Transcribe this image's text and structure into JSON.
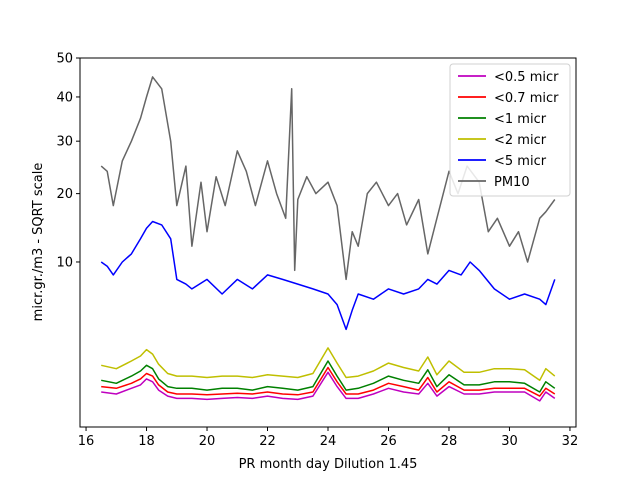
{
  "chart_data": {
    "type": "line",
    "title": "",
    "xlabel": "PR month day  Dilution 1.45",
    "ylabel": "micr.gr./m3 - SQRT scale",
    "y_scale": "sqrt",
    "xlim": [
      15.8,
      32.2
    ],
    "ylim": [
      0,
      50
    ],
    "x_ticks": [
      16,
      18,
      20,
      22,
      24,
      26,
      28,
      30,
      32
    ],
    "y_ticks": [
      10,
      20,
      30,
      40,
      50
    ],
    "grid": false,
    "legend_position": "top-right",
    "series": [
      {
        "name": "<0.5 micr",
        "color": "#bf00bf",
        "x": [
          16.5,
          17,
          17.5,
          17.8,
          18,
          18.2,
          18.4,
          18.7,
          19,
          19.5,
          20,
          20.5,
          21,
          21.5,
          22,
          22.5,
          23,
          23.5,
          24,
          24.3,
          24.6,
          25,
          25.5,
          26,
          26.5,
          27,
          27.3,
          27.6,
          28,
          28.5,
          29,
          29.5,
          30,
          30.5,
          31,
          31.2,
          31.5
        ],
        "y": [
          0.45,
          0.4,
          0.55,
          0.65,
          0.85,
          0.75,
          0.5,
          0.35,
          0.3,
          0.3,
          0.28,
          0.3,
          0.32,
          0.3,
          0.35,
          0.3,
          0.28,
          0.35,
          1.1,
          0.6,
          0.3,
          0.3,
          0.4,
          0.55,
          0.45,
          0.4,
          0.7,
          0.35,
          0.6,
          0.4,
          0.4,
          0.45,
          0.45,
          0.45,
          0.25,
          0.45,
          0.3
        ]
      },
      {
        "name": "<0.7 micr",
        "color": "#ff0000",
        "x": [
          16.5,
          17,
          17.5,
          17.8,
          18,
          18.2,
          18.4,
          18.7,
          19,
          19.5,
          20,
          20.5,
          21,
          21.5,
          22,
          22.5,
          23,
          23.5,
          24,
          24.3,
          24.6,
          25,
          25.5,
          26,
          26.5,
          27,
          27.3,
          27.6,
          28,
          28.5,
          29,
          29.5,
          30,
          30.5,
          31,
          31.2,
          31.5
        ],
        "y": [
          0.6,
          0.55,
          0.7,
          0.85,
          1.05,
          0.95,
          0.65,
          0.45,
          0.4,
          0.4,
          0.38,
          0.4,
          0.42,
          0.4,
          0.45,
          0.4,
          0.38,
          0.45,
          1.3,
          0.75,
          0.4,
          0.4,
          0.5,
          0.7,
          0.6,
          0.5,
          0.9,
          0.45,
          0.75,
          0.5,
          0.5,
          0.55,
          0.55,
          0.55,
          0.35,
          0.55,
          0.4
        ]
      },
      {
        "name": "<1 micr",
        "color": "#008000",
        "x": [
          16.5,
          17,
          17.5,
          17.8,
          18,
          18.2,
          18.4,
          18.7,
          19,
          19.5,
          20,
          20.5,
          21,
          21.5,
          22,
          22.5,
          23,
          23.5,
          24,
          24.3,
          24.6,
          25,
          25.5,
          26,
          26.5,
          27,
          27.3,
          27.6,
          28,
          28.5,
          29,
          29.5,
          30,
          30.5,
          31,
          31.2,
          31.5
        ],
        "y": [
          0.8,
          0.7,
          0.95,
          1.15,
          1.4,
          1.25,
          0.85,
          0.6,
          0.55,
          0.55,
          0.5,
          0.55,
          0.55,
          0.5,
          0.6,
          0.55,
          0.5,
          0.6,
          1.6,
          0.95,
          0.5,
          0.55,
          0.7,
          0.95,
          0.8,
          0.7,
          1.2,
          0.6,
          1.0,
          0.65,
          0.65,
          0.75,
          0.75,
          0.7,
          0.45,
          0.75,
          0.55
        ]
      },
      {
        "name": "<2 micr",
        "color": "#bfbf00",
        "x": [
          16.5,
          17,
          17.5,
          17.8,
          18,
          18.2,
          18.4,
          18.7,
          19,
          19.5,
          20,
          20.5,
          21,
          21.5,
          22,
          22.5,
          23,
          23.5,
          24,
          24.3,
          24.6,
          25,
          25.5,
          26,
          26.5,
          27,
          27.3,
          27.6,
          28,
          28.5,
          29,
          29.5,
          30,
          30.5,
          31,
          31.2,
          31.5
        ],
        "y": [
          1.4,
          1.25,
          1.6,
          1.85,
          2.2,
          1.95,
          1.45,
          1.05,
          0.95,
          0.95,
          0.9,
          0.95,
          0.95,
          0.9,
          1.0,
          0.95,
          0.9,
          1.05,
          2.3,
          1.5,
          0.9,
          0.95,
          1.15,
          1.5,
          1.3,
          1.15,
          1.8,
          1.0,
          1.6,
          1.1,
          1.1,
          1.25,
          1.25,
          1.2,
          0.8,
          1.25,
          0.95
        ]
      },
      {
        "name": "<5 micr",
        "color": "#0000ff",
        "x": [
          16.5,
          16.7,
          16.9,
          17.2,
          17.5,
          17.8,
          18,
          18.2,
          18.5,
          18.8,
          19,
          19.3,
          19.5,
          20,
          20.5,
          21,
          21.5,
          22,
          22.5,
          23,
          23.5,
          24,
          24.3,
          24.6,
          24.8,
          25,
          25.5,
          26,
          26.5,
          27,
          27.3,
          27.6,
          28,
          28.4,
          28.7,
          29,
          29.5,
          30,
          30.5,
          31,
          31.2,
          31.5
        ],
        "y": [
          10,
          9.5,
          8.5,
          10,
          11,
          13,
          14.5,
          15.5,
          15,
          13,
          8,
          7.5,
          7,
          8,
          6.5,
          8,
          7,
          8.5,
          8,
          7.5,
          7,
          6.5,
          5.5,
          3.5,
          5,
          6.5,
          6,
          7,
          6.5,
          7,
          8,
          7.5,
          9,
          8.5,
          10,
          9,
          7,
          6,
          6.5,
          6,
          5.5,
          8
        ]
      },
      {
        "name": "PM10",
        "color": "#666666",
        "x": [
          16.5,
          16.7,
          16.9,
          17.2,
          17.5,
          17.8,
          18,
          18.2,
          18.5,
          18.8,
          19,
          19.3,
          19.5,
          19.8,
          20,
          20.3,
          20.6,
          21,
          21.3,
          21.6,
          22,
          22.3,
          22.6,
          22.8,
          22.9,
          23,
          23.3,
          23.6,
          24,
          24.3,
          24.6,
          24.8,
          25,
          25.3,
          25.6,
          26,
          26.3,
          26.6,
          27,
          27.3,
          27.6,
          28,
          28.3,
          28.6,
          29,
          29.3,
          29.6,
          30,
          30.3,
          30.6,
          31,
          31.2,
          31.5
        ],
        "y": [
          25,
          24,
          18,
          26,
          30,
          35,
          40,
          45,
          42,
          30,
          18,
          25,
          12,
          22,
          14,
          23,
          18,
          28,
          24,
          18,
          26,
          20,
          16,
          42,
          9,
          19,
          23,
          20,
          22,
          18,
          8,
          14,
          12,
          20,
          22,
          18,
          20,
          15,
          19,
          11,
          16,
          24,
          20,
          25,
          22,
          14,
          16,
          12,
          14,
          10,
          16,
          17,
          19
        ]
      }
    ]
  }
}
